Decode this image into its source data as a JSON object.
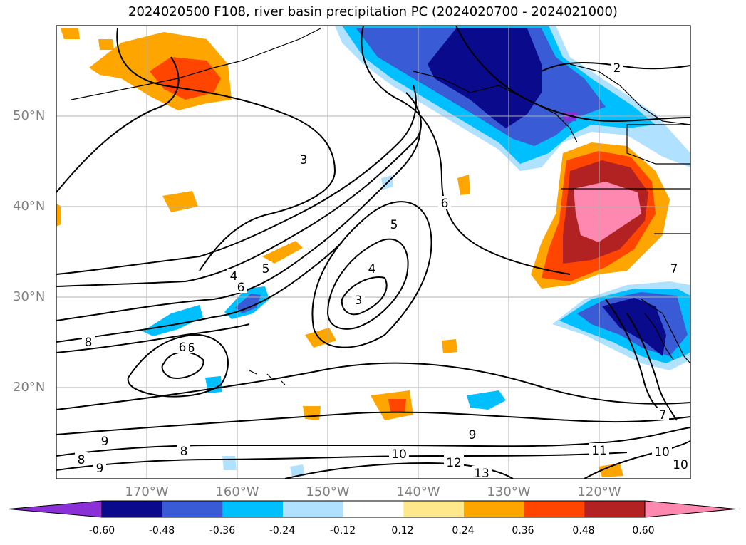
{
  "title": "2024020500 F108, river basin precipitation PC (2024020700 - 2024021000)",
  "lat_labels": [
    "50°N",
    "40°N",
    "30°N",
    "20°N"
  ],
  "lon_labels": [
    "170°W",
    "160°W",
    "150°W",
    "140°W",
    "130°W",
    "120°W"
  ],
  "colorbar": {
    "ticks": [
      "-0.60",
      "-0.48",
      "-0.36",
      "-0.24",
      "-0.12",
      "0.12",
      "0.24",
      "0.36",
      "0.48",
      "0.60"
    ],
    "colors": [
      "#8b2fd6",
      "#0a0a8c",
      "#3a5bd6",
      "#00bfff",
      "#b0e2ff",
      "#ffffff",
      "#ffe88c",
      "#ffa500",
      "#ff4500",
      "#b22222",
      "#ff88b0"
    ]
  },
  "contour_labels": [
    "2",
    "3",
    "4",
    "5",
    "6",
    "3",
    "4",
    "5",
    "6",
    "6",
    "7",
    "8",
    "6",
    "8",
    "8",
    "9",
    "9",
    "10",
    "10",
    "10",
    "11",
    "12",
    "13",
    "9",
    "7"
  ],
  "colors": {
    "land_outline": "#000000",
    "grid": "#b0b0b0",
    "label_gray": "#808080"
  }
}
